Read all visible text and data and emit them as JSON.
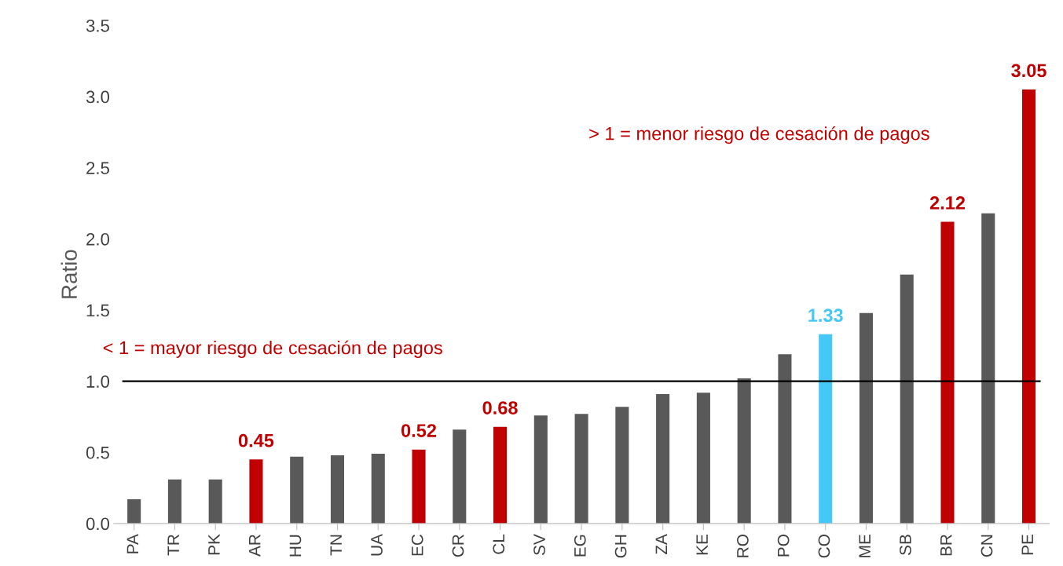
{
  "chart_data": {
    "type": "bar",
    "ylabel": "Ratio",
    "categories": [
      "PA",
      "TR",
      "PK",
      "AR",
      "HU",
      "TN",
      "UA",
      "EC",
      "CR",
      "CL",
      "SV",
      "EG",
      "GH",
      "ZA",
      "KE",
      "RO",
      "PO",
      "CO",
      "ME",
      "SB",
      "BR",
      "CN",
      "PE"
    ],
    "values": [
      0.17,
      0.31,
      0.31,
      0.45,
      0.47,
      0.48,
      0.49,
      0.52,
      0.66,
      0.68,
      0.76,
      0.77,
      0.82,
      0.91,
      0.92,
      1.02,
      1.19,
      1.33,
      1.48,
      1.75,
      2.12,
      2.18,
      3.05
    ],
    "colors": [
      "#595959",
      "#595959",
      "#595959",
      "#c00000",
      "#595959",
      "#595959",
      "#595959",
      "#c00000",
      "#595959",
      "#c00000",
      "#595959",
      "#595959",
      "#595959",
      "#595959",
      "#595959",
      "#595959",
      "#595959",
      "#45c8f5",
      "#595959",
      "#595959",
      "#c00000",
      "#595959",
      "#c00000"
    ],
    "value_labels": [
      null,
      null,
      null,
      "0.45",
      null,
      null,
      null,
      "0.52",
      null,
      "0.68",
      null,
      null,
      null,
      null,
      null,
      null,
      null,
      "1.33",
      null,
      null,
      "2.12",
      null,
      "3.05"
    ],
    "ylim": [
      0,
      3.5
    ],
    "yticks": [
      {
        "value": 0,
        "label": "0.0"
      },
      {
        "value": 0.5,
        "label": "0.5"
      },
      {
        "value": 1,
        "label": "1.0"
      },
      {
        "value": 1.5,
        "label": "1.5"
      },
      {
        "value": 2,
        "label": "2.0"
      },
      {
        "value": 2.5,
        "label": "2.5"
      },
      {
        "value": 3,
        "label": "3.0"
      },
      {
        "value": 3.5,
        "label": "3.5"
      }
    ],
    "ref_lines": [
      {
        "axis": "y",
        "value": 1,
        "color": "#000000"
      }
    ],
    "annotations": [
      "< 1 = mayor riesgo de cesación de pagos",
      "> 1 = menor riesgo de cesación de pagos"
    ],
    "grid": false,
    "legend": false
  }
}
